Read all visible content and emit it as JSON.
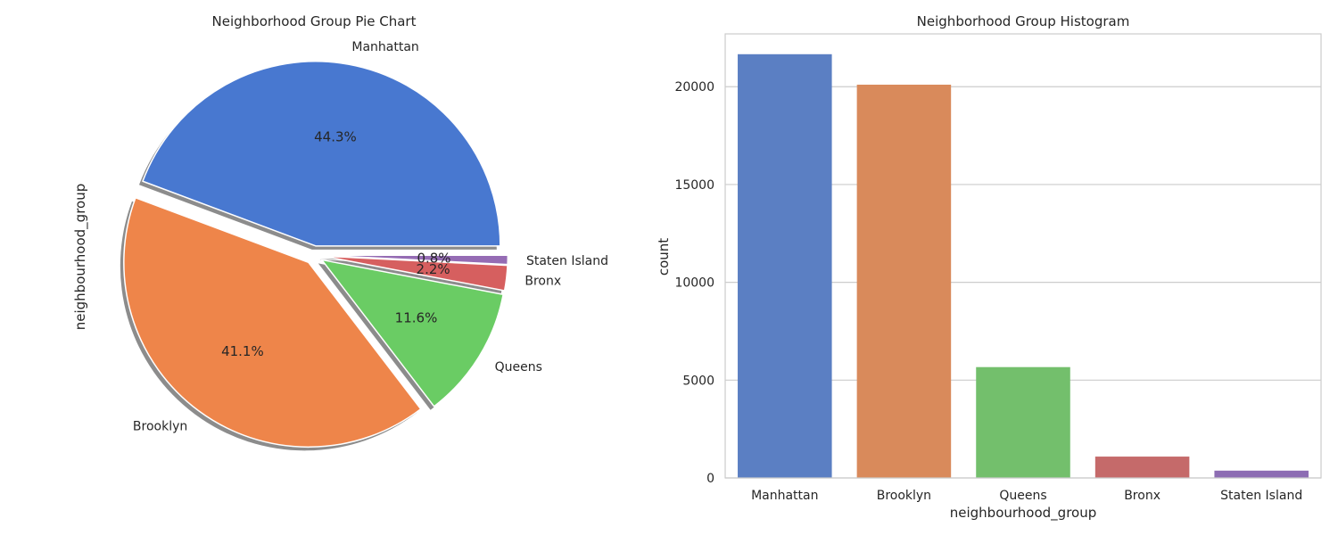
{
  "chart_data": [
    {
      "type": "pie",
      "title": "Neighborhood Group Pie Chart",
      "ylabel": "neighbourhood_group",
      "labels": [
        "Manhattan",
        "Brooklyn",
        "Queens",
        "Bronx",
        "Staten Island"
      ],
      "values": [
        44.3,
        41.1,
        11.6,
        2.2,
        0.8
      ],
      "value_labels": [
        "44.3%",
        "41.1%",
        "11.6%",
        "2.2%",
        "0.8%"
      ],
      "colors": [
        "#4878d0",
        "#ee854a",
        "#6acc64",
        "#d65f5f",
        "#956cb4"
      ],
      "exploded": true,
      "shadow": true
    },
    {
      "type": "bar",
      "title": "Neighborhood Group Histogram",
      "xlabel": "neighbourhood_group",
      "ylabel": "count",
      "categories": [
        "Manhattan",
        "Brooklyn",
        "Queens",
        "Bronx",
        "Staten Island"
      ],
      "values": [
        21661,
        20104,
        5666,
        1091,
        373
      ],
      "ylim": [
        0,
        22700
      ],
      "yticks": [
        0,
        5000,
        10000,
        15000,
        20000
      ],
      "grid": true,
      "colors": [
        "#5b7fc3",
        "#d98a5b",
        "#73bf6c",
        "#c56a6a",
        "#8d6db3"
      ]
    }
  ]
}
